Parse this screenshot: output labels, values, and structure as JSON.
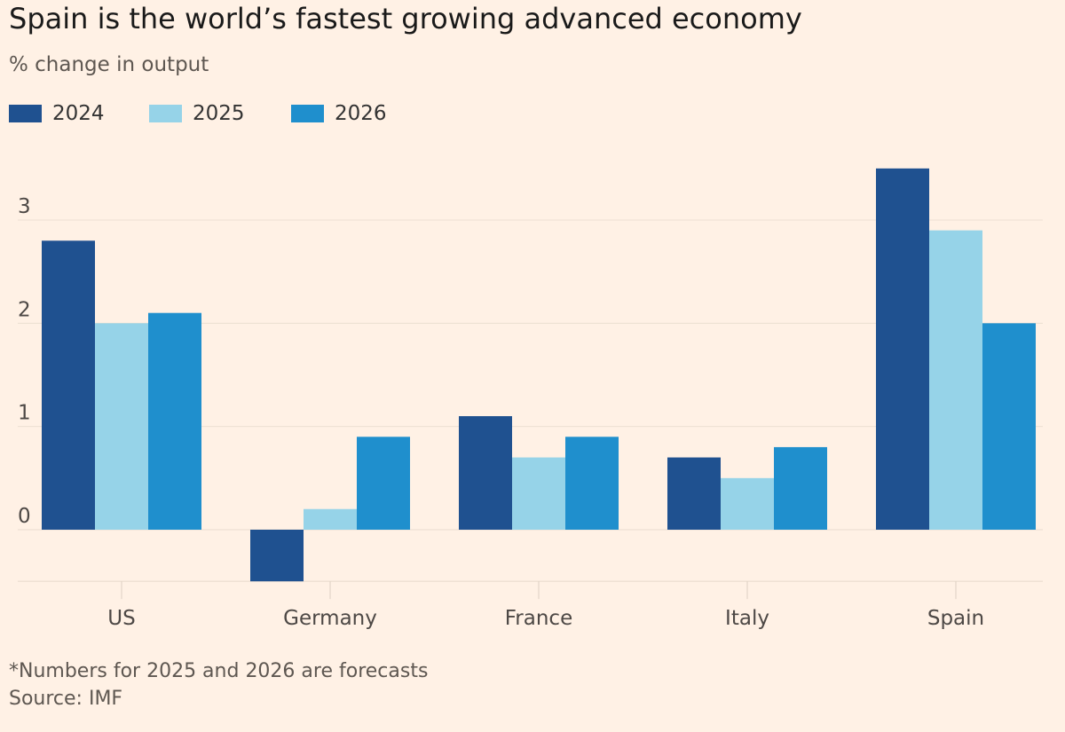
{
  "chart_data": {
    "type": "bar",
    "title": "Spain is the world’s fastest growing advanced economy",
    "subtitle": "% change in output",
    "categories": [
      "US",
      "Germany",
      "France",
      "Italy",
      "Spain"
    ],
    "series": [
      {
        "name": "2024",
        "values": [
          2.8,
          -0.5,
          1.1,
          0.7,
          3.5
        ],
        "color": "#1F5190"
      },
      {
        "name": "2025",
        "values": [
          2.0,
          0.2,
          0.7,
          0.5,
          2.9
        ],
        "color": "#96D3E8"
      },
      {
        "name": "2026",
        "values": [
          2.1,
          0.9,
          0.9,
          0.8,
          2.0
        ],
        "color": "#1F8FCD"
      }
    ],
    "ylim": [
      -0.5,
      3.5
    ],
    "yticks": [
      "0",
      "1",
      "2",
      "3"
    ],
    "grid": true,
    "xlabel": "",
    "ylabel": "",
    "footnote": "*Numbers for 2025 and 2026 are forecasts",
    "source": "Source: IMF"
  }
}
